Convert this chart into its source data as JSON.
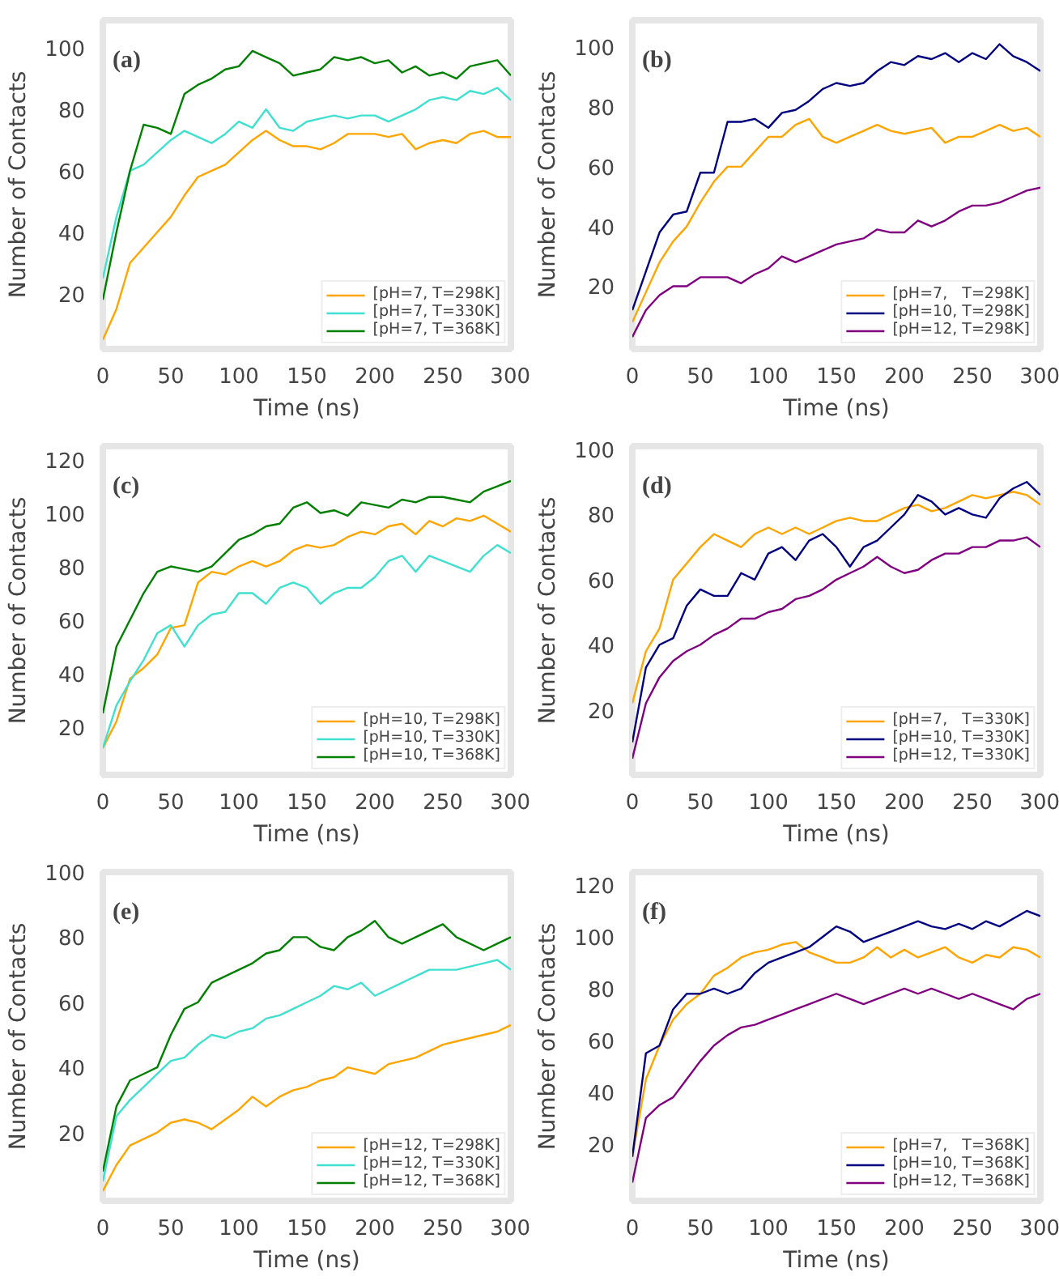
{
  "chart_data": [
    {
      "type": "line",
      "annotations": [
        "(a)"
      ],
      "xlabel": "Time (ns)",
      "ylabel": "Number of Contacts",
      "xlim": [
        0,
        300
      ],
      "xticks": [
        0,
        50,
        100,
        150,
        200,
        250,
        300
      ],
      "ylim": [
        2,
        109
      ],
      "yticks": [
        20,
        40,
        60,
        80,
        100
      ],
      "grid": false,
      "legend": "bottom right",
      "x": [
        0,
        10,
        20,
        30,
        40,
        50,
        60,
        70,
        80,
        90,
        100,
        110,
        120,
        130,
        140,
        150,
        160,
        170,
        180,
        190,
        200,
        210,
        220,
        230,
        240,
        250,
        260,
        270,
        280,
        290,
        300
      ],
      "series": [
        {
          "name": "[pH=7, T=298K]",
          "color": "#ffa500",
          "values": [
            5,
            15,
            30,
            35,
            40,
            45,
            52,
            58,
            60,
            62,
            66,
            70,
            73,
            70,
            68,
            68,
            67,
            69,
            72,
            72,
            72,
            71,
            72,
            67,
            69,
            70,
            69,
            72,
            73,
            71,
            71
          ]
        },
        {
          "name": "[pH=7, T=330K]",
          "color": "#40e0d0",
          "values": [
            25,
            45,
            60,
            62,
            66,
            70,
            73,
            71,
            69,
            72,
            76,
            74,
            80,
            74,
            73,
            76,
            77,
            78,
            77,
            78,
            78,
            76,
            78,
            80,
            83,
            84,
            83,
            86,
            85,
            87,
            83
          ]
        },
        {
          "name": "[pH=7, T=368K]",
          "color": "#008000",
          "values": [
            18,
            40,
            60,
            75,
            74,
            72,
            85,
            88,
            90,
            93,
            94,
            99,
            97,
            95,
            91,
            92,
            93,
            97,
            96,
            97,
            95,
            96,
            92,
            94,
            91,
            92,
            90,
            94,
            95,
            96,
            91
          ]
        }
      ]
    },
    {
      "type": "line",
      "annotations": [
        "(b)"
      ],
      "xlabel": "Time (ns)",
      "ylabel": "Number of Contacts",
      "xlim": [
        0,
        300
      ],
      "xticks": [
        0,
        50,
        100,
        150,
        200,
        250,
        300
      ],
      "ylim": [
        -1,
        109
      ],
      "yticks": [
        20,
        40,
        60,
        80,
        100
      ],
      "grid": false,
      "legend": "bottom right",
      "x": [
        0,
        10,
        20,
        30,
        40,
        50,
        60,
        70,
        80,
        90,
        100,
        110,
        120,
        130,
        140,
        150,
        160,
        170,
        180,
        190,
        200,
        210,
        220,
        230,
        240,
        250,
        260,
        270,
        280,
        290,
        300
      ],
      "series": [
        {
          "name": "[pH=7,   T=298K]",
          "color": "#ffa500",
          "values": [
            8,
            18,
            28,
            35,
            40,
            48,
            55,
            60,
            60,
            65,
            70,
            70,
            74,
            76,
            70,
            68,
            70,
            72,
            74,
            72,
            71,
            72,
            73,
            68,
            70,
            70,
            72,
            74,
            72,
            73,
            70
          ]
        },
        {
          "name": "[pH=10, T=298K]",
          "color": "#000080",
          "values": [
            12,
            25,
            38,
            44,
            45,
            58,
            58,
            75,
            75,
            76,
            73,
            78,
            79,
            82,
            86,
            88,
            87,
            88,
            92,
            95,
            94,
            97,
            96,
            98,
            95,
            98,
            96,
            101,
            97,
            95,
            92
          ]
        },
        {
          "name": "[pH=12, T=298K]",
          "color": "#800080",
          "values": [
            3,
            12,
            17,
            20,
            20,
            23,
            23,
            23,
            21,
            24,
            26,
            30,
            28,
            30,
            32,
            34,
            35,
            36,
            39,
            38,
            38,
            42,
            40,
            42,
            45,
            47,
            47,
            48,
            50,
            52,
            53
          ]
        }
      ]
    },
    {
      "type": "line",
      "annotations": [
        "(c)"
      ],
      "xlabel": "Time (ns)",
      "ylabel": "Number of Contacts",
      "xlim": [
        0,
        300
      ],
      "xticks": [
        0,
        50,
        100,
        150,
        200,
        250,
        300
      ],
      "ylim": [
        2,
        125
      ],
      "yticks": [
        20,
        40,
        60,
        80,
        100,
        120
      ],
      "grid": false,
      "legend": "bottom right",
      "x": [
        0,
        10,
        20,
        30,
        40,
        50,
        60,
        70,
        80,
        90,
        100,
        110,
        120,
        130,
        140,
        150,
        160,
        170,
        180,
        190,
        200,
        210,
        220,
        230,
        240,
        250,
        260,
        270,
        280,
        290,
        300
      ],
      "series": [
        {
          "name": "[pH=10, T=298K]",
          "color": "#ffa500",
          "values": [
            12,
            22,
            38,
            42,
            47,
            57,
            58,
            74,
            78,
            77,
            80,
            82,
            80,
            82,
            86,
            88,
            87,
            88,
            91,
            93,
            92,
            95,
            96,
            92,
            97,
            95,
            98,
            97,
            99,
            96,
            93
          ]
        },
        {
          "name": "[pH=10, T=330K]",
          "color": "#40e0d0",
          "values": [
            12,
            28,
            37,
            45,
            55,
            58,
            50,
            58,
            62,
            63,
            70,
            70,
            66,
            72,
            74,
            72,
            66,
            70,
            72,
            72,
            76,
            82,
            84,
            78,
            84,
            82,
            80,
            78,
            84,
            88,
            85
          ]
        },
        {
          "name": "[pH=10, T=368K]",
          "color": "#008000",
          "values": [
            25,
            50,
            60,
            70,
            78,
            80,
            79,
            78,
            80,
            85,
            90,
            92,
            95,
            96,
            102,
            104,
            100,
            101,
            99,
            104,
            103,
            102,
            105,
            104,
            106,
            106,
            105,
            104,
            108,
            110,
            112
          ]
        }
      ]
    },
    {
      "type": "line",
      "annotations": [
        "(d)"
      ],
      "xlabel": "Time (ns)",
      "ylabel": "Number of Contacts",
      "xlim": [
        0,
        300
      ],
      "xticks": [
        0,
        50,
        100,
        150,
        200,
        250,
        300
      ],
      "ylim": [
        0,
        101
      ],
      "yticks": [
        20,
        40,
        60,
        80,
        100
      ],
      "grid": false,
      "legend": "bottom right",
      "x": [
        0,
        10,
        20,
        30,
        40,
        50,
        60,
        70,
        80,
        90,
        100,
        110,
        120,
        130,
        140,
        150,
        160,
        170,
        180,
        190,
        200,
        210,
        220,
        230,
        240,
        250,
        260,
        270,
        280,
        290,
        300
      ],
      "series": [
        {
          "name": "[pH=7,   T=330K]",
          "color": "#ffa500",
          "values": [
            22,
            38,
            45,
            60,
            65,
            70,
            74,
            72,
            70,
            74,
            76,
            74,
            76,
            74,
            76,
            78,
            79,
            78,
            78,
            80,
            82,
            83,
            81,
            82,
            84,
            86,
            85,
            86,
            87,
            86,
            83
          ]
        },
        {
          "name": "[pH=10, T=330K]",
          "color": "#000080",
          "values": [
            10,
            33,
            40,
            42,
            52,
            57,
            55,
            55,
            62,
            60,
            68,
            70,
            66,
            72,
            74,
            70,
            64,
            70,
            72,
            76,
            80,
            86,
            84,
            80,
            82,
            80,
            79,
            85,
            88,
            90,
            86
          ]
        },
        {
          "name": "[pH=12, T=330K]",
          "color": "#800080",
          "values": [
            5,
            22,
            30,
            35,
            38,
            40,
            43,
            45,
            48,
            48,
            50,
            51,
            54,
            55,
            57,
            60,
            62,
            64,
            67,
            64,
            62,
            63,
            66,
            68,
            68,
            70,
            70,
            72,
            72,
            73,
            70
          ]
        }
      ]
    },
    {
      "type": "line",
      "annotations": [
        "(e)"
      ],
      "xlabel": "Time (ns)",
      "ylabel": "Number of Contacts",
      "xlim": [
        0,
        300
      ],
      "xticks": [
        0,
        50,
        100,
        150,
        200,
        250,
        300
      ],
      "ylim": [
        -1,
        100
      ],
      "yticks": [
        20,
        40,
        60,
        80,
        100
      ],
      "grid": false,
      "legend": "bottom right",
      "x": [
        0,
        10,
        20,
        30,
        40,
        50,
        60,
        70,
        80,
        90,
        100,
        110,
        120,
        130,
        140,
        150,
        160,
        170,
        180,
        190,
        200,
        210,
        220,
        230,
        240,
        250,
        260,
        270,
        280,
        290,
        300
      ],
      "series": [
        {
          "name": "[pH=12, T=298K]",
          "color": "#ffa500",
          "values": [
            2,
            10,
            16,
            18,
            20,
            23,
            24,
            23,
            21,
            24,
            27,
            31,
            28,
            31,
            33,
            34,
            36,
            37,
            40,
            39,
            38,
            41,
            42,
            43,
            45,
            47,
            48,
            49,
            50,
            51,
            53
          ]
        },
        {
          "name": "[pH=12, T=330K]",
          "color": "#40e0d0",
          "values": [
            5,
            25,
            30,
            34,
            38,
            42,
            43,
            47,
            50,
            49,
            51,
            52,
            55,
            56,
            58,
            60,
            62,
            65,
            64,
            66,
            62,
            64,
            66,
            68,
            70,
            70,
            70,
            71,
            72,
            73,
            70
          ]
        },
        {
          "name": "[pH=12, T=368K]",
          "color": "#008000",
          "values": [
            8,
            28,
            36,
            38,
            40,
            50,
            58,
            60,
            66,
            68,
            70,
            72,
            75,
            76,
            80,
            80,
            77,
            76,
            80,
            82,
            85,
            80,
            78,
            80,
            82,
            84,
            80,
            78,
            76,
            78,
            80
          ]
        }
      ]
    },
    {
      "type": "line",
      "annotations": [
        "(f)"
      ],
      "xlabel": "Time (ns)",
      "ylabel": "Number of Contacts",
      "xlim": [
        0,
        300
      ],
      "xticks": [
        0,
        50,
        100,
        150,
        200,
        250,
        300
      ],
      "ylim": [
        -2,
        125
      ],
      "yticks": [
        20,
        40,
        60,
        80,
        100,
        120
      ],
      "grid": false,
      "legend": "bottom right",
      "x": [
        0,
        10,
        20,
        30,
        40,
        50,
        60,
        70,
        80,
        90,
        100,
        110,
        120,
        130,
        140,
        150,
        160,
        170,
        180,
        190,
        200,
        210,
        220,
        230,
        240,
        250,
        260,
        270,
        280,
        290,
        300
      ],
      "series": [
        {
          "name": "[pH=7,   T=368K]",
          "color": "#ffa500",
          "values": [
            15,
            45,
            58,
            68,
            74,
            78,
            85,
            88,
            92,
            94,
            95,
            97,
            98,
            94,
            92,
            90,
            90,
            92,
            96,
            92,
            95,
            92,
            94,
            96,
            92,
            90,
            93,
            92,
            96,
            95,
            92
          ]
        },
        {
          "name": "[pH=10, T=368K]",
          "color": "#000080",
          "values": [
            15,
            55,
            58,
            72,
            78,
            78,
            80,
            78,
            80,
            86,
            90,
            92,
            94,
            96,
            100,
            104,
            102,
            98,
            100,
            102,
            104,
            106,
            104,
            103,
            105,
            103,
            106,
            104,
            107,
            110,
            108
          ]
        },
        {
          "name": "[pH=12, T=368K]",
          "color": "#800080",
          "values": [
            5,
            30,
            35,
            38,
            45,
            52,
            58,
            62,
            65,
            66,
            68,
            70,
            72,
            74,
            76,
            78,
            76,
            74,
            76,
            78,
            80,
            78,
            80,
            78,
            76,
            78,
            76,
            74,
            72,
            76,
            78
          ]
        }
      ]
    }
  ]
}
